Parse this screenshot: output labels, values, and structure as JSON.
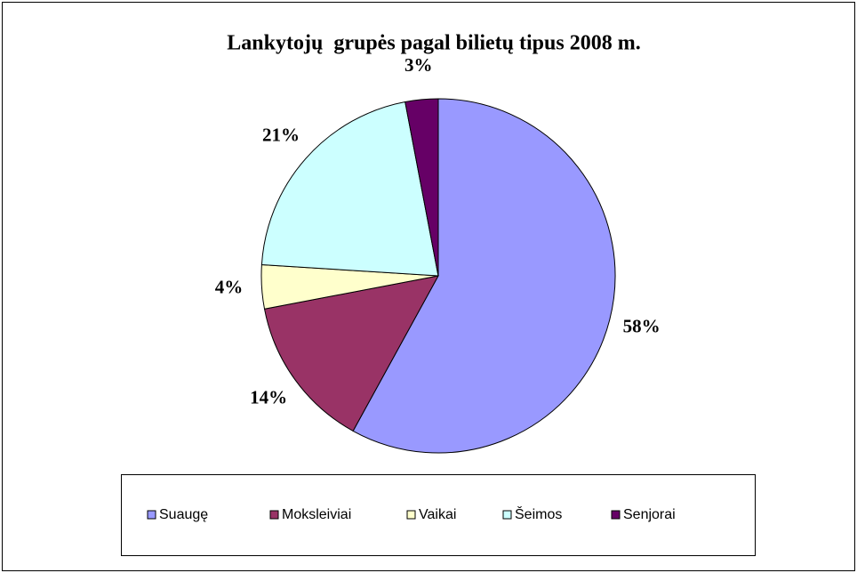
{
  "chart_data": {
    "type": "pie",
    "title": "Lankytojų  grupės pagal bilietų tipus 2008 m.",
    "categories": [
      "Suaugę",
      "Moksleiviai",
      "Vaikai",
      "Šeimos",
      "Senjorai"
    ],
    "values": [
      58,
      14,
      4,
      21,
      3
    ],
    "value_labels": [
      "58%",
      "14%",
      "4%",
      "21%",
      "3%"
    ],
    "colors": [
      "#9999ff",
      "#993366",
      "#ffffcc",
      "#ccffff",
      "#660066"
    ],
    "legend": "bottom"
  }
}
